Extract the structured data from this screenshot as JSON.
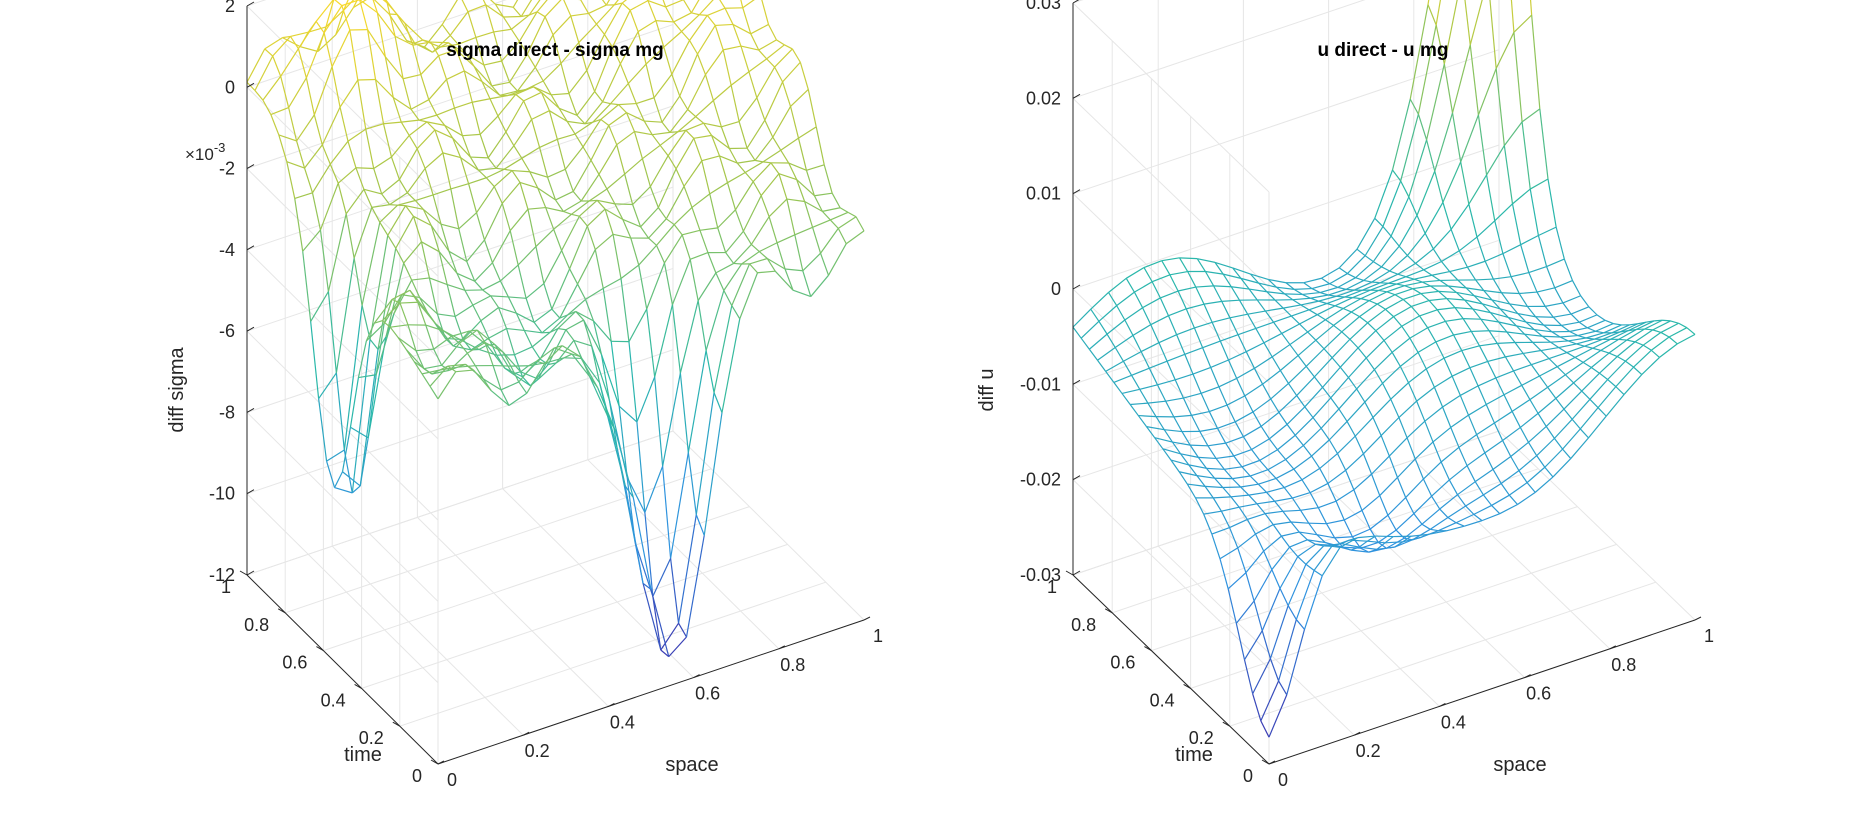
{
  "chart_data": [
    {
      "type": "surface",
      "title": "sigma direct - sigma mg",
      "xlabel": "space",
      "ylabel": "time",
      "zlabel": "diff sigma",
      "z_exponent": "×10^-3",
      "z_exponent_base": "×10",
      "z_exponent_power": "-3",
      "xlim": [
        0,
        1
      ],
      "ylim": [
        0,
        1
      ],
      "zlim": [
        -12,
        2
      ],
      "xticks": [
        "0",
        "0.2",
        "0.4",
        "0.6",
        "0.8",
        "1"
      ],
      "yticks": [
        "0",
        "0.2",
        "0.4",
        "0.6",
        "0.8",
        "1"
      ],
      "zticks": [
        "-12",
        "-10",
        "-8",
        "-6",
        "-4",
        "-2",
        "0",
        "2"
      ],
      "colormap": [
        "#3e26a8",
        "#2f91e0",
        "#2ab9a8",
        "#a5c64b",
        "#f9d92c"
      ],
      "grid": true
    },
    {
      "type": "surface",
      "title": "u direct - u mg",
      "xlabel": "space",
      "ylabel": "time",
      "zlabel": "diff u",
      "xlim": [
        0,
        1
      ],
      "ylim": [
        0,
        1
      ],
      "zlim": [
        -0.03,
        0.03
      ],
      "xticks": [
        "0",
        "0.2",
        "0.4",
        "0.6",
        "0.8",
        "1"
      ],
      "yticks": [
        "0",
        "0.2",
        "0.4",
        "0.6",
        "0.8",
        "1"
      ],
      "zticks": [
        "-0.03",
        "-0.02",
        "-0.01",
        "0",
        "0.01",
        "0.02",
        "0.03"
      ],
      "colormap": [
        "#3e26a8",
        "#2f91e0",
        "#2ab9a8",
        "#a5c64b",
        "#f9d92c"
      ],
      "grid": true
    }
  ]
}
